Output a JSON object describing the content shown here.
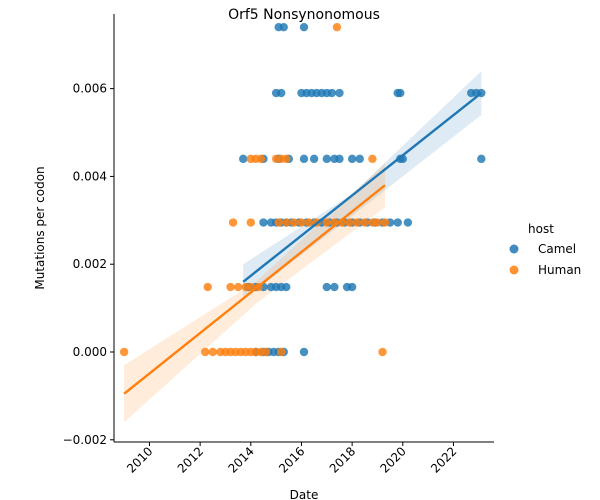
{
  "chart_data": {
    "type": "scatter",
    "title": "Orf5 Nonsynonomous",
    "xlabel": "Date",
    "ylabel": "Mutations per codon",
    "xlim": [
      2008.6,
      2023.6
    ],
    "ylim": [
      -0.00205,
      0.0077
    ],
    "xticks": [
      2010,
      2012,
      2014,
      2016,
      2018,
      2020,
      2022
    ],
    "xtick_labels": [
      "2010",
      "2012",
      "2014",
      "2016",
      "2018",
      "2020",
      "2022"
    ],
    "yticks": [
      -0.002,
      0.0,
      0.002,
      0.004,
      0.006
    ],
    "ytick_labels": [
      "−0.002",
      "0.000",
      "0.002",
      "0.004",
      "0.006"
    ],
    "grid": false,
    "legend": {
      "title": "host",
      "position": "right"
    },
    "series": [
      {
        "name": "Camel",
        "color": "#1f77b4",
        "regression": {
          "x": [
            2013.7,
            2023.1
          ],
          "y": [
            0.0016,
            0.0059
          ]
        },
        "ci_band": {
          "x": [
            2013.7,
            2018.0,
            2023.1
          ],
          "lower": [
            0.0012,
            0.0031,
            0.0054
          ],
          "upper": [
            0.002,
            0.0036,
            0.0064
          ]
        },
        "points": [
          [
            2015.1,
            0.0074
          ],
          [
            2015.3,
            0.0074
          ],
          [
            2016.1,
            0.0074
          ],
          [
            2015.0,
            0.0059
          ],
          [
            2015.2,
            0.0059
          ],
          [
            2016.0,
            0.0059
          ],
          [
            2016.2,
            0.0059
          ],
          [
            2016.4,
            0.0059
          ],
          [
            2016.6,
            0.0059
          ],
          [
            2016.8,
            0.0059
          ],
          [
            2017.0,
            0.0059
          ],
          [
            2017.2,
            0.0059
          ],
          [
            2017.5,
            0.0059
          ],
          [
            2019.8,
            0.0059
          ],
          [
            2019.9,
            0.0059
          ],
          [
            2022.7,
            0.0059
          ],
          [
            2022.9,
            0.0059
          ],
          [
            2023.1,
            0.0059
          ],
          [
            2013.7,
            0.0044
          ],
          [
            2014.5,
            0.0044
          ],
          [
            2015.1,
            0.0044
          ],
          [
            2015.5,
            0.0044
          ],
          [
            2016.1,
            0.0044
          ],
          [
            2016.5,
            0.0044
          ],
          [
            2017.0,
            0.0044
          ],
          [
            2017.3,
            0.0044
          ],
          [
            2017.5,
            0.0044
          ],
          [
            2018.0,
            0.0044
          ],
          [
            2018.3,
            0.0044
          ],
          [
            2019.9,
            0.0044
          ],
          [
            2020.0,
            0.0044
          ],
          [
            2023.1,
            0.0044
          ],
          [
            2014.5,
            0.00295
          ],
          [
            2014.8,
            0.00295
          ],
          [
            2015.0,
            0.00295
          ],
          [
            2015.2,
            0.00295
          ],
          [
            2015.4,
            0.00295
          ],
          [
            2015.6,
            0.00295
          ],
          [
            2015.9,
            0.00295
          ],
          [
            2016.2,
            0.00295
          ],
          [
            2016.5,
            0.00295
          ],
          [
            2016.8,
            0.00295
          ],
          [
            2017.1,
            0.00295
          ],
          [
            2017.4,
            0.00295
          ],
          [
            2017.7,
            0.00295
          ],
          [
            2018.0,
            0.00295
          ],
          [
            2018.3,
            0.00295
          ],
          [
            2018.6,
            0.00295
          ],
          [
            2018.9,
            0.00295
          ],
          [
            2019.2,
            0.00295
          ],
          [
            2019.5,
            0.00295
          ],
          [
            2019.8,
            0.00295
          ],
          [
            2020.2,
            0.00295
          ],
          [
            2013.9,
            0.00148
          ],
          [
            2014.2,
            0.00148
          ],
          [
            2014.5,
            0.00148
          ],
          [
            2014.8,
            0.00148
          ],
          [
            2015.0,
            0.00148
          ],
          [
            2015.2,
            0.00148
          ],
          [
            2015.4,
            0.00148
          ],
          [
            2017.0,
            0.00148
          ],
          [
            2017.3,
            0.00148
          ],
          [
            2017.8,
            0.00148
          ],
          [
            2018.0,
            0.00148
          ],
          [
            2014.2,
            0.0
          ],
          [
            2014.5,
            0.0
          ],
          [
            2014.7,
            0.0
          ],
          [
            2014.9,
            0.0
          ],
          [
            2015.1,
            0.0
          ],
          [
            2015.3,
            0.0
          ],
          [
            2016.1,
            0.0
          ]
        ]
      },
      {
        "name": "Human",
        "color": "#ff7f0e",
        "regression": {
          "x": [
            2009.0,
            2019.3
          ],
          "y": [
            -0.00095,
            0.0038
          ]
        },
        "ci_band": {
          "x": [
            2009.0,
            2014.2,
            2019.3
          ],
          "lower": [
            -0.0016,
            0.0011,
            0.0033
          ],
          "upper": [
            -0.0003,
            0.0016,
            0.0043
          ]
        },
        "points": [
          [
            2017.4,
            0.0074
          ],
          [
            2014.0,
            0.0044
          ],
          [
            2014.2,
            0.0044
          ],
          [
            2014.4,
            0.0044
          ],
          [
            2015.0,
            0.0044
          ],
          [
            2015.2,
            0.0044
          ],
          [
            2015.4,
            0.0044
          ],
          [
            2018.8,
            0.0044
          ],
          [
            2013.3,
            0.00295
          ],
          [
            2014.0,
            0.00295
          ],
          [
            2015.1,
            0.00295
          ],
          [
            2015.4,
            0.00295
          ],
          [
            2015.7,
            0.00295
          ],
          [
            2016.0,
            0.00295
          ],
          [
            2016.3,
            0.00295
          ],
          [
            2016.6,
            0.00295
          ],
          [
            2017.0,
            0.00295
          ],
          [
            2017.3,
            0.00295
          ],
          [
            2017.6,
            0.00295
          ],
          [
            2017.9,
            0.00295
          ],
          [
            2018.2,
            0.00295
          ],
          [
            2018.5,
            0.00295
          ],
          [
            2018.8,
            0.00295
          ],
          [
            2019.0,
            0.00295
          ],
          [
            2019.3,
            0.00295
          ],
          [
            2012.3,
            0.00148
          ],
          [
            2013.2,
            0.00148
          ],
          [
            2013.5,
            0.00148
          ],
          [
            2013.8,
            0.00148
          ],
          [
            2014.0,
            0.00148
          ],
          [
            2014.3,
            0.00148
          ],
          [
            2009.0,
            0.0
          ],
          [
            2012.2,
            0.0
          ],
          [
            2012.5,
            0.0
          ],
          [
            2012.8,
            0.0
          ],
          [
            2013.0,
            0.0
          ],
          [
            2013.2,
            0.0
          ],
          [
            2013.4,
            0.0
          ],
          [
            2013.6,
            0.0
          ],
          [
            2013.8,
            0.0
          ],
          [
            2014.0,
            0.0
          ],
          [
            2014.2,
            0.0
          ],
          [
            2014.4,
            0.0
          ],
          [
            2014.6,
            0.0
          ],
          [
            2015.2,
            0.0
          ],
          [
            2019.2,
            0.0
          ]
        ]
      }
    ]
  }
}
